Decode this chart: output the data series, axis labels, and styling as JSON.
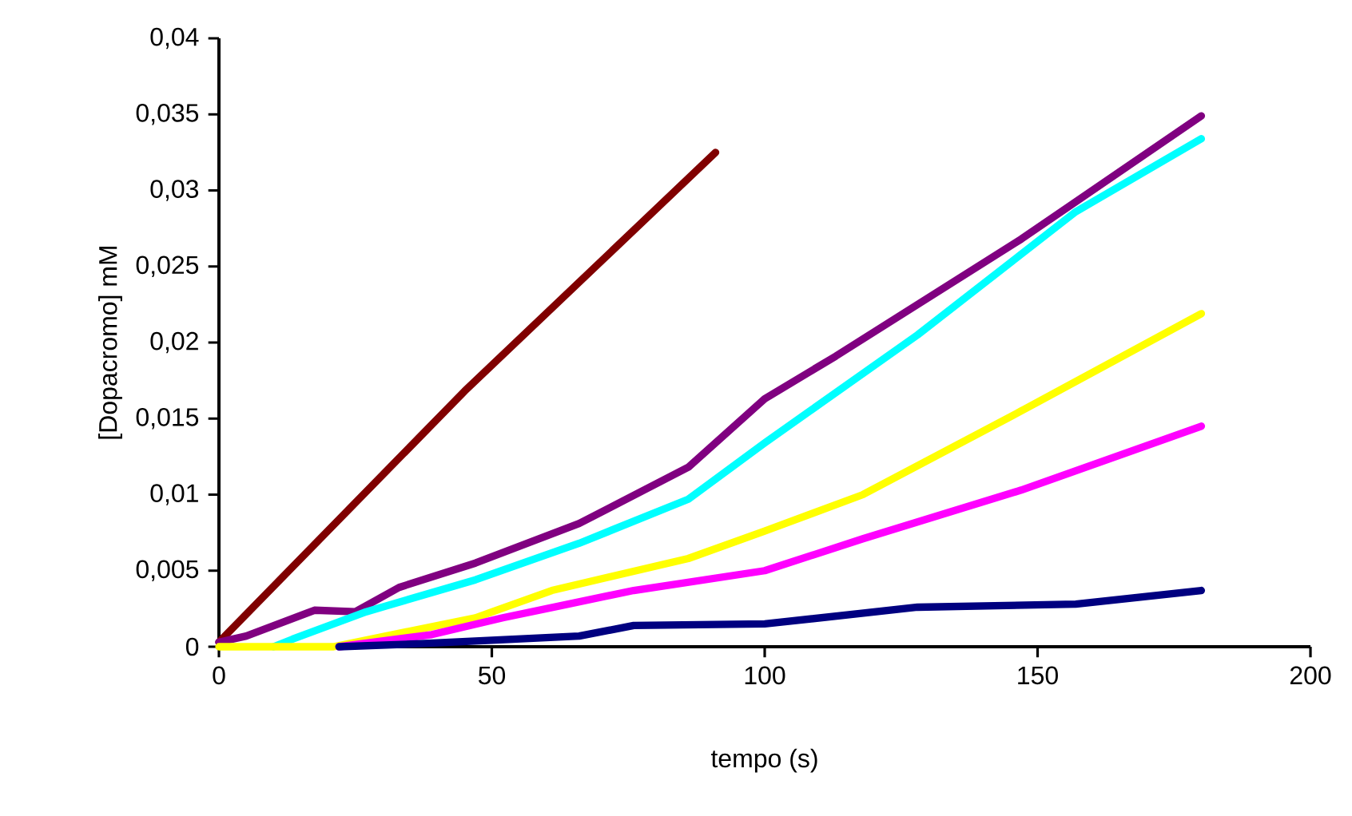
{
  "chart_data": {
    "type": "line",
    "xlabel": "tempo (s)",
    "ylabel": "[Dopacromo] mM",
    "xlim": [
      0,
      200
    ],
    "xticks": [
      0,
      50,
      100,
      150,
      200
    ],
    "ylim": [
      0,
      0.04
    ],
    "yticks": [
      0,
      {
        "value": 0.005,
        "label": "0,005"
      },
      {
        "value": 0.01,
        "label": "0,01"
      },
      {
        "value": 0.015,
        "label": "0,015"
      },
      {
        "value": 0.02,
        "label": "0,02"
      },
      {
        "value": 0.025,
        "label": "0,025"
      },
      {
        "value": 0.03,
        "label": "0,03"
      },
      {
        "value": 0.035,
        "label": "0,035"
      },
      {
        "value": 0.04,
        "label": "0,04"
      }
    ],
    "grid": false,
    "marker": "none",
    "line_style": "solid",
    "series": [
      {
        "color": "#800000",
        "x": [
          0,
          45,
          91
        ],
        "values": [
          0.0003,
          0.0168,
          0.0325
        ]
      },
      {
        "color": "#800080",
        "x": [
          0,
          5,
          17.5,
          25,
          33,
          47,
          66,
          86,
          100,
          113,
          147,
          180
        ],
        "values": [
          0.0003,
          0.0007,
          0.0024,
          0.0023,
          0.0039,
          0.0055,
          0.0081,
          0.0118,
          0.0163,
          0.0191,
          0.0268,
          0.0349
        ]
      },
      {
        "color": "#00ffff",
        "x": [
          10,
          13.5,
          27,
          47,
          66,
          86,
          100,
          128,
          157,
          180
        ],
        "values": [
          0,
          0.0005,
          0.0023,
          0.0044,
          0.0068,
          0.0097,
          0.0134,
          0.0205,
          0.0286,
          0.0334
        ]
      },
      {
        "color": "#ffff00",
        "x": [
          0,
          21,
          47,
          61,
          86,
          100,
          118,
          147,
          180
        ],
        "values": [
          0,
          0,
          0.0019,
          0.0037,
          0.0058,
          0.0076,
          0.01,
          0.0155,
          0.0219
        ]
      },
      {
        "color": "#ff00ff",
        "x": [
          22,
          39,
          52,
          76,
          100,
          118,
          147,
          180
        ],
        "values": [
          0,
          0.0008,
          0.0019,
          0.0037,
          0.005,
          0.0071,
          0.0103,
          0.0145
        ]
      },
      {
        "color": "#000080",
        "x": [
          22,
          37,
          66,
          76,
          100,
          128,
          157,
          180
        ],
        "values": [
          0,
          0.0002,
          0.0007,
          0.0014,
          0.0015,
          0.0026,
          0.0028,
          0.0037
        ]
      }
    ]
  }
}
